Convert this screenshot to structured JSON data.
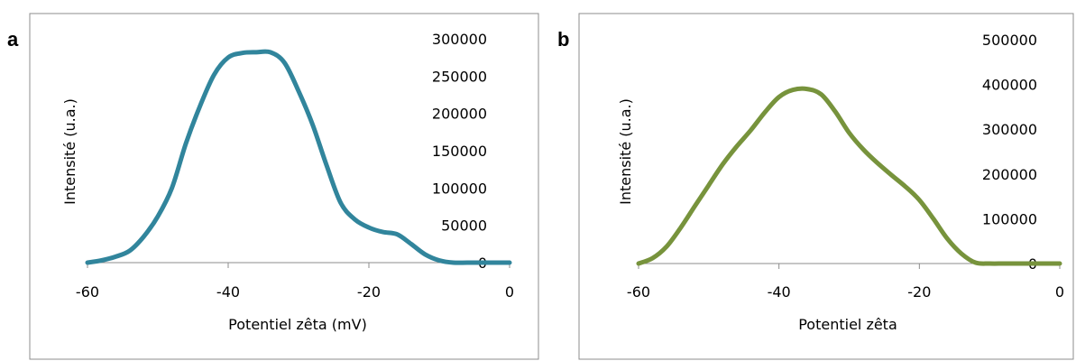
{
  "chart_data": [
    {
      "type": "line",
      "panel_label": "a",
      "xlabel": "Potentiel  zêta (mV)",
      "ylabel": "Intensité (u.a.)",
      "xlim": [
        -60,
        0
      ],
      "ylim": [
        0,
        300000
      ],
      "x_ticks": [
        "-60",
        "-40",
        "-20",
        "0"
      ],
      "y_ticks": [
        "0",
        "50000",
        "100000",
        "150000",
        "200000",
        "250000",
        "300000"
      ],
      "grid": false,
      "legend": "none",
      "color": "#31859C",
      "series": [
        {
          "x": [
            -60,
            -58,
            -56,
            -54,
            -52,
            -50,
            -48,
            -46,
            -44,
            -42,
            -40,
            -38,
            -36,
            -34,
            -32,
            -30,
            -28,
            -26,
            -24,
            -22,
            -20,
            -18,
            -16,
            -14,
            -12,
            -10,
            -8,
            -6,
            -4,
            -2,
            0
          ],
          "values": [
            0,
            3000,
            8000,
            16000,
            35000,
            62000,
            100000,
            160000,
            210000,
            252000,
            275000,
            281000,
            282000,
            282000,
            268000,
            230000,
            185000,
            130000,
            80000,
            58000,
            47000,
            41000,
            38000,
            25000,
            11000,
            3000,
            0,
            0,
            0,
            0,
            0
          ]
        }
      ]
    },
    {
      "type": "line",
      "panel_label": "b",
      "xlabel": "Potentiel zêta",
      "ylabel": "Intensité (u.a.)",
      "xlim": [
        -60,
        0
      ],
      "ylim": [
        0,
        500000
      ],
      "x_ticks": [
        "-60",
        "-40",
        "-20",
        "0"
      ],
      "y_ticks": [
        "0",
        "100000",
        "200000",
        "300000",
        "400000",
        "500000"
      ],
      "grid": false,
      "legend": "none",
      "color": "#77933C",
      "series": [
        {
          "x": [
            -60,
            -58,
            -56,
            -54,
            -52,
            -50,
            -48,
            -46,
            -44,
            -42,
            -40,
            -38,
            -36,
            -34,
            -32,
            -30,
            -28,
            -26,
            -24,
            -22,
            -20,
            -18,
            -16,
            -14,
            -12,
            -10,
            -8,
            -6,
            -4,
            -2,
            0
          ],
          "values": [
            0,
            12000,
            38000,
            80000,
            128000,
            175000,
            222000,
            262000,
            298000,
            338000,
            372000,
            388000,
            390000,
            378000,
            340000,
            292000,
            255000,
            225000,
            198000,
            172000,
            142000,
            100000,
            55000,
            22000,
            2000,
            0,
            0,
            0,
            0,
            0,
            0
          ]
        }
      ]
    }
  ]
}
